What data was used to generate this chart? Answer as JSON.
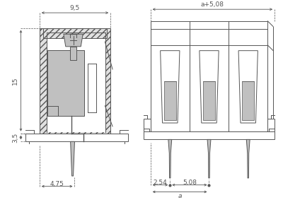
{
  "bg_color": "#ffffff",
  "line_color": "#555555",
  "gray_fill": "#c0c0c0",
  "hatch_fill": "#d8d8d8",
  "dim_color": "#555555",
  "fig_width": 4.0,
  "fig_height": 2.83,
  "dpi": 100,
  "annotations": {
    "dim_9p5": "9,5",
    "dim_15": "15",
    "dim_3p5": "3,5",
    "dim_4p75": "4,75",
    "dim_ap508": "a+5,08",
    "dim_2p54": "2,54",
    "dim_5p08": "5,08",
    "dim_a": "a"
  }
}
